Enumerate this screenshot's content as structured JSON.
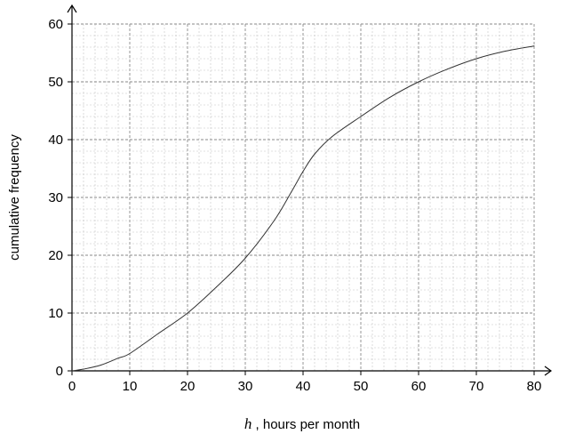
{
  "chart_data": {
    "type": "line",
    "title": "",
    "xlabel": {
      "variable": "h",
      "text": " , hours per month"
    },
    "ylabel": "cumulative frequency",
    "xlim": [
      0,
      80
    ],
    "ylim": [
      0,
      60
    ],
    "x_ticks": [
      "0",
      "10",
      "20",
      "30",
      "40",
      "50",
      "60",
      "70",
      "80"
    ],
    "y_ticks": [
      "0",
      "10",
      "20",
      "30",
      "40",
      "50",
      "60"
    ],
    "grid": {
      "major_step_x": 10,
      "minor_step_x": 2,
      "major_step_y": 10,
      "minor_step_y": 2
    },
    "series": [
      {
        "x": [
          0,
          2,
          5,
          8,
          10,
          15,
          20,
          25,
          30,
          35,
          38,
          40,
          42,
          45,
          50,
          55,
          60,
          65,
          70,
          75,
          80
        ],
        "y": [
          0,
          0.3,
          1,
          2.2,
          3,
          6.5,
          10,
          14.5,
          19.5,
          26,
          31,
          34.5,
          37.5,
          40.5,
          44,
          47.3,
          50,
          52.2,
          54,
          55.3,
          56.2
        ]
      }
    ],
    "colors": {
      "curve": "#333333",
      "axis": "#000000",
      "grid": "#aaaaaa"
    }
  }
}
